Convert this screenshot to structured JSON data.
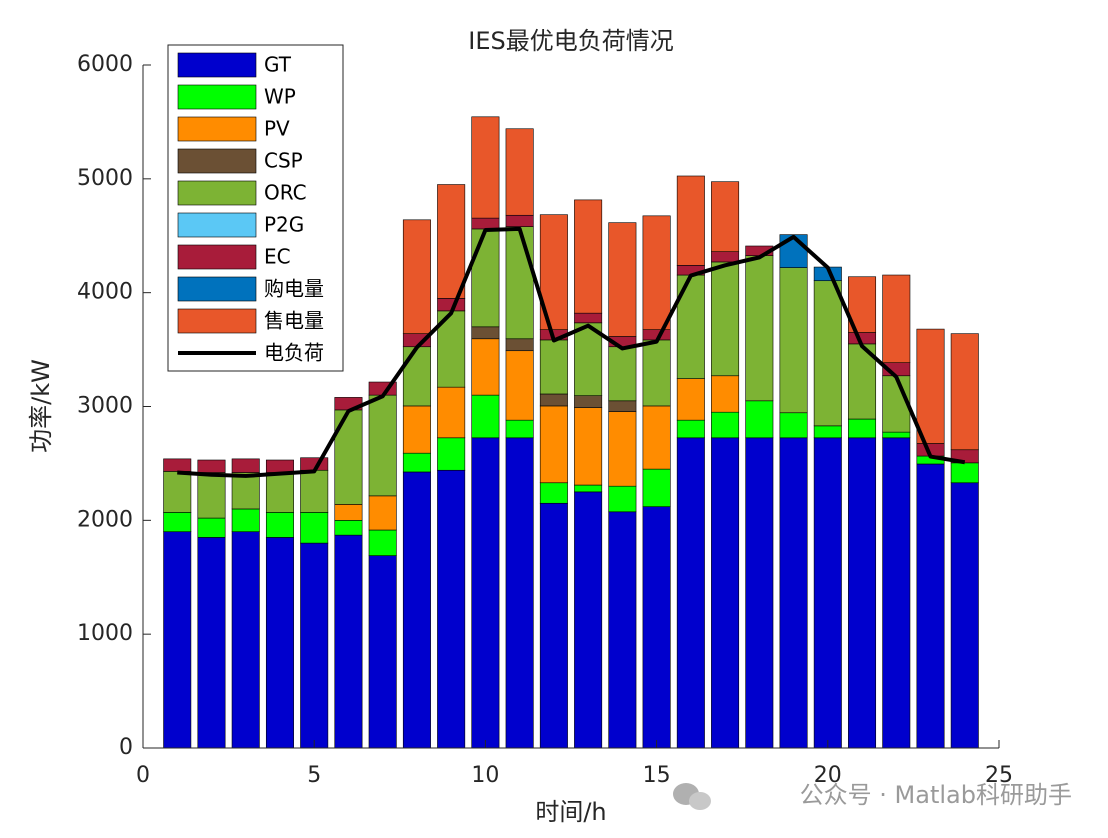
{
  "chart_data": {
    "type": "stacked_bar_line",
    "title": "IES最优电负荷情况",
    "xlabel": "时间/h",
    "ylabel": "功率/kW",
    "watermark": "公众号 · Matlab科研助手",
    "x": [
      1,
      2,
      3,
      4,
      5,
      6,
      7,
      8,
      9,
      10,
      11,
      12,
      13,
      14,
      15,
      16,
      17,
      18,
      19,
      20,
      21,
      22,
      23,
      24
    ],
    "xlim": [
      0,
      25
    ],
    "xticks": [
      0,
      5,
      10,
      15,
      20,
      25
    ],
    "ylim": [
      0,
      6000
    ],
    "yticks": [
      0,
      1000,
      2000,
      3000,
      4000,
      5000,
      6000
    ],
    "series": [
      {
        "name": "GT",
        "color": "#0000cd",
        "values": [
          1900,
          1850,
          1900,
          1850,
          1800,
          1870,
          1690,
          2425,
          2440,
          2725,
          2725,
          2150,
          2250,
          2075,
          2120,
          2725,
          2725,
          2725,
          2725,
          2725,
          2725,
          2725,
          2495,
          2330
        ]
      },
      {
        "name": "WP",
        "color": "#00ff00",
        "values": [
          170,
          170,
          200,
          220,
          270,
          130,
          225,
          165,
          285,
          375,
          155,
          180,
          60,
          225,
          330,
          155,
          225,
          325,
          220,
          105,
          165,
          50,
          70,
          175
        ]
      },
      {
        "name": "PV",
        "color": "#ff8c00",
        "values": [
          0,
          0,
          0,
          0,
          0,
          140,
          300,
          415,
          445,
          495,
          610,
          675,
          680,
          655,
          555,
          365,
          320,
          0,
          0,
          0,
          0,
          0,
          0,
          0
        ]
      },
      {
        "name": "CSP",
        "color": "#6b5034",
        "values": [
          0,
          0,
          0,
          0,
          0,
          0,
          0,
          0,
          0,
          105,
          105,
          105,
          105,
          95,
          0,
          0,
          0,
          0,
          0,
          0,
          0,
          0,
          0,
          0
        ]
      },
      {
        "name": "ORC",
        "color": "#7db334",
        "values": [
          360,
          400,
          320,
          350,
          370,
          830,
          885,
          520,
          670,
          860,
          985,
          475,
          640,
          475,
          580,
          910,
          1000,
          1275,
          1275,
          1275,
          660,
          495,
          0,
          0
        ]
      },
      {
        "name": "P2G",
        "color": "#5bc8f5",
        "values": [
          0,
          0,
          0,
          0,
          0,
          0,
          0,
          0,
          0,
          0,
          0,
          0,
          0,
          0,
          0,
          0,
          0,
          0,
          0,
          0,
          0,
          0,
          0,
          0
        ]
      },
      {
        "name": "EC",
        "color": "#a81c3a",
        "values": [
          110,
          110,
          120,
          110,
          110,
          110,
          115,
          115,
          110,
          95,
          100,
          90,
          85,
          90,
          90,
          85,
          90,
          85,
          0,
          0,
          100,
          115,
          110,
          115
        ]
      },
      {
        "name": "购电量",
        "color": "#0072bd",
        "values": [
          0,
          0,
          0,
          0,
          0,
          0,
          0,
          0,
          0,
          0,
          0,
          0,
          0,
          0,
          0,
          0,
          0,
          0,
          290,
          120,
          0,
          0,
          0,
          0
        ]
      },
      {
        "name": "售电量",
        "color": "#e8572a",
        "values": [
          0,
          0,
          0,
          0,
          0,
          0,
          0,
          1000,
          1000,
          890,
          760,
          1010,
          995,
          1000,
          1000,
          785,
          615,
          0,
          0,
          0,
          490,
          770,
          1005,
          1020
        ]
      }
    ],
    "line": {
      "name": "电负荷",
      "color": "#000000",
      "values": [
        2420,
        2400,
        2390,
        2410,
        2430,
        2960,
        3090,
        3520,
        3820,
        4550,
        4560,
        3580,
        3710,
        3510,
        3570,
        4150,
        4240,
        4310,
        4490,
        4220,
        3530,
        3260,
        2560,
        2510
      ]
    }
  }
}
